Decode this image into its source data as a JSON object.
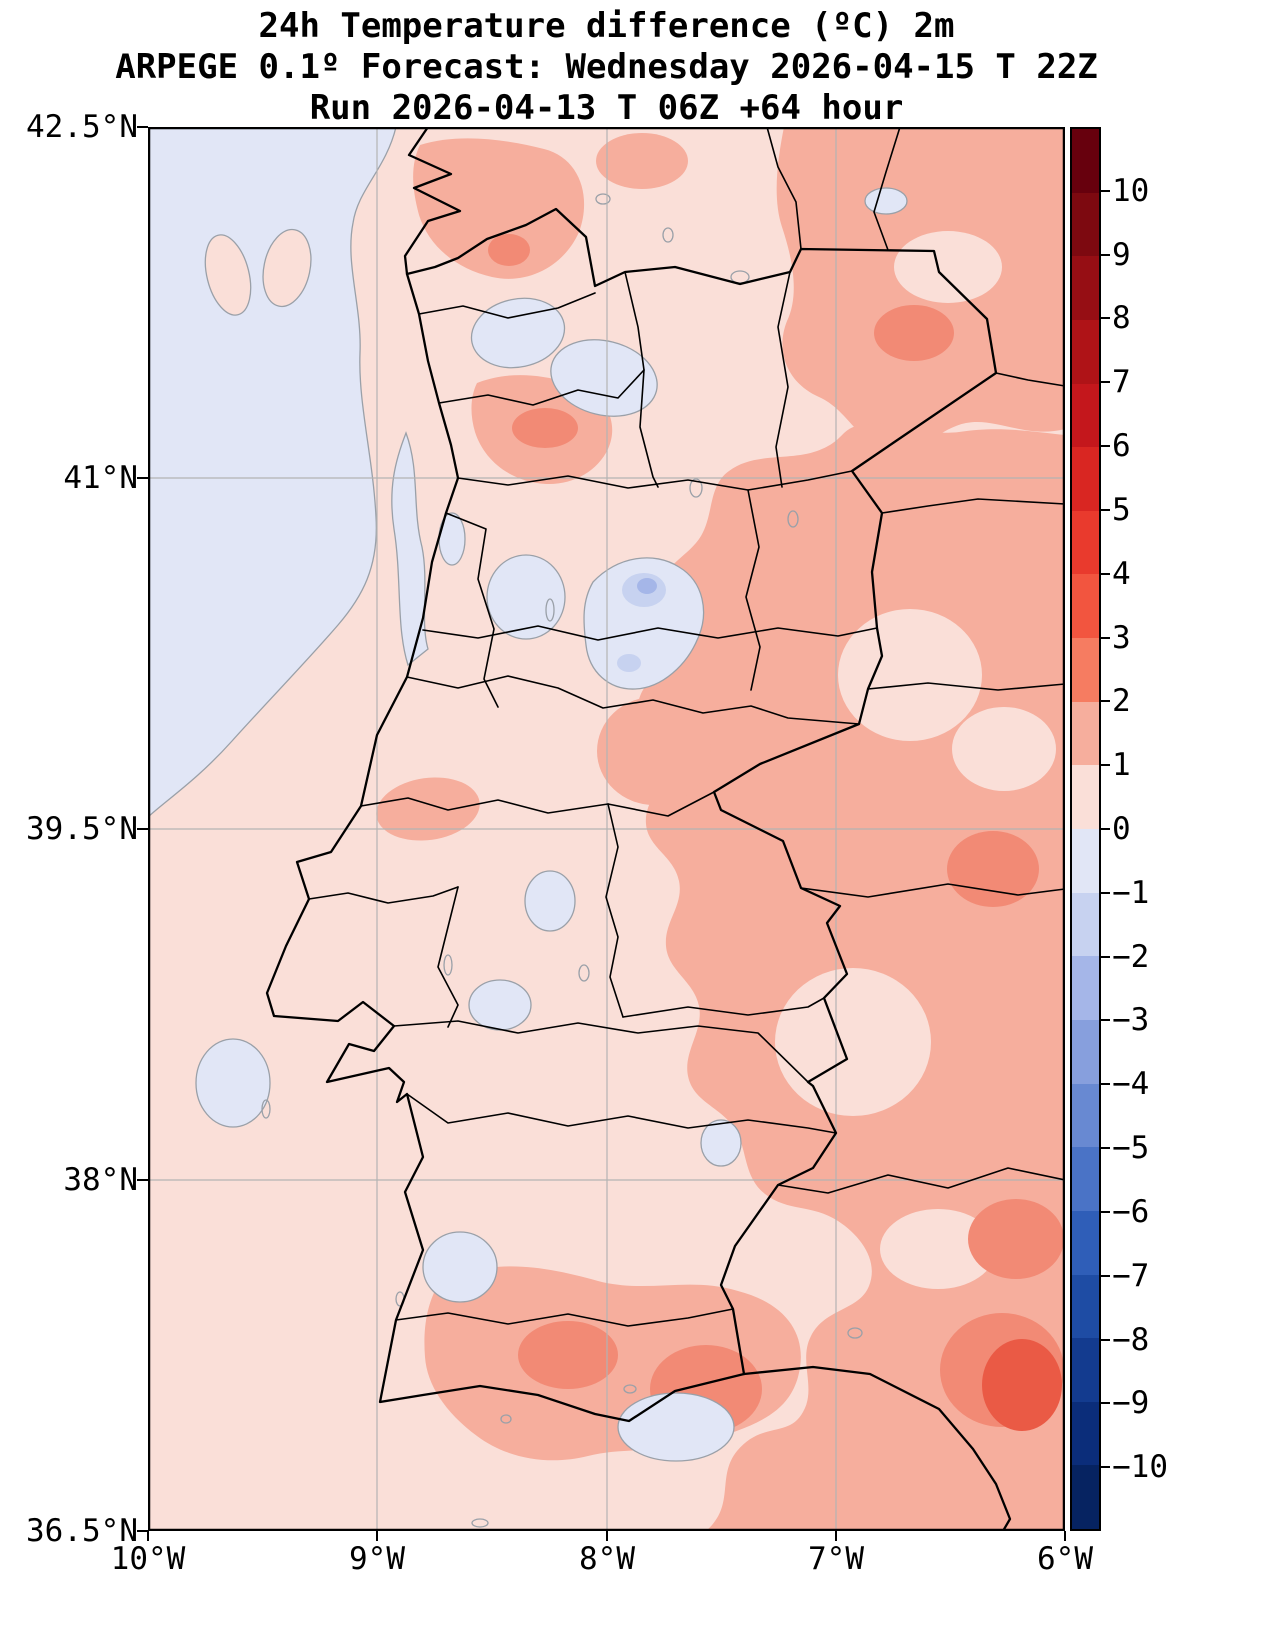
{
  "title": {
    "line1": "24h Temperature difference (ºC) 2m",
    "line2": "ARPEGE 0.1º Forecast: Wednesday 2026-04-15 T 22Z",
    "line3": "Run 2026-04-13 T 06Z +64 hour"
  },
  "axes": {
    "y_tick_labels": [
      "42.5°N",
      "41°N",
      "39.5°N",
      "38°N",
      "36.5°N"
    ],
    "x_tick_labels": [
      "10°W",
      "9°W",
      "8°W",
      "7°W",
      "6°W"
    ]
  },
  "colorbar": {
    "tick_labels": [
      "10",
      "9",
      "8",
      "7",
      "6",
      "5",
      "4",
      "3",
      "2",
      "1",
      "0",
      "−1",
      "−2",
      "−3",
      "−4",
      "−5",
      "−6",
      "−7",
      "−8",
      "−9",
      "−10"
    ],
    "segment_colors_top_to_bottom": [
      "#67000d",
      "#7d0910",
      "#960e14",
      "#af1317",
      "#c4171c",
      "#d92622",
      "#e93a2d",
      "#f2553f",
      "#f67c61",
      "#f6ae9d",
      "#fadfd8",
      "#e1e6f6",
      "#c7d2f0",
      "#a5b6e8",
      "#879fdd",
      "#6889d2",
      "#4a73c6",
      "#2f5eb8",
      "#1e4ca4",
      "#133b8f",
      "#0b2d7a",
      "#062361"
    ]
  },
  "map": {
    "region": "Portugal and western Spain",
    "field": "24h 2m temperature difference (ºC)",
    "palette": {
      "level_0_1": "#fadfd8",
      "level_1_2": "#f6ae9d",
      "level_2_3": "#f28a75",
      "level_3_4": "#ea5a45",
      "level_m1_0": "#e1e6f6",
      "level_m2_m1": "#c7d2f0",
      "level_m3_m2": "#a5b6e8",
      "contour_line_color": "#9aa0a8",
      "boundary_color": "#000000",
      "grid_color": "#b3b3b3"
    }
  }
}
